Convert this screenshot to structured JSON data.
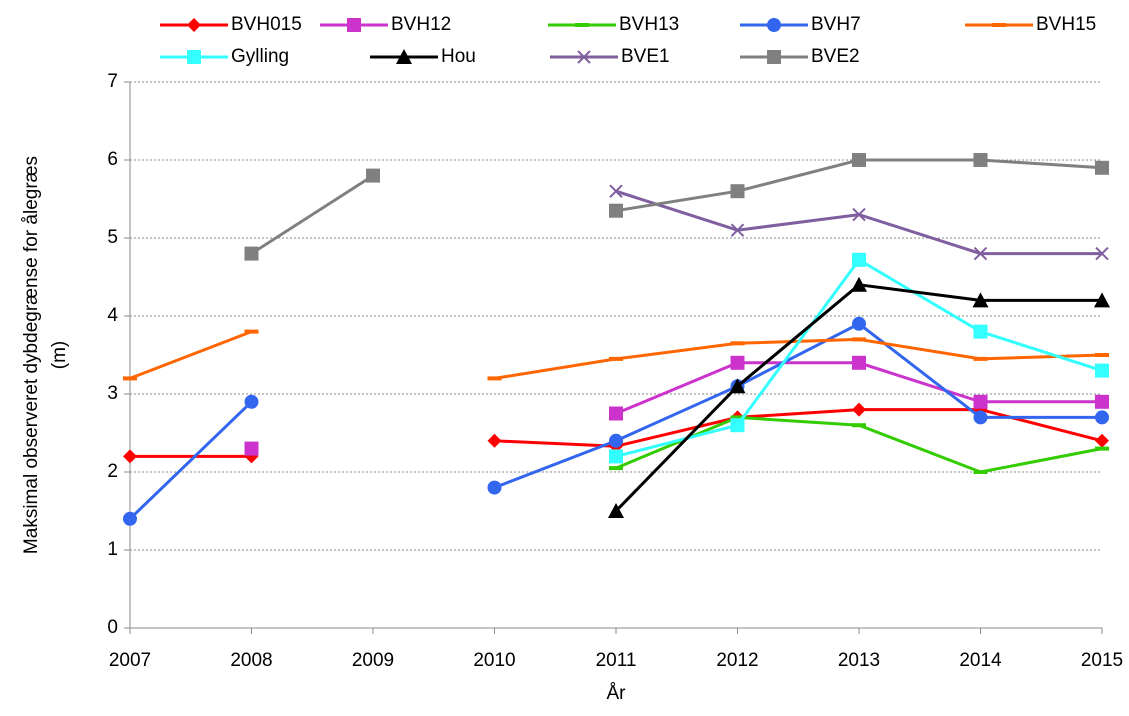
{
  "chart_data": {
    "type": "line",
    "ylabel": [
      "Maksimal observeret dybdegrænse for ålegræs",
      "(m)"
    ],
    "xlabel": "År",
    "x": [
      2007,
      2008,
      2009,
      2010,
      2011,
      2012,
      2013,
      2014,
      2015
    ],
    "xlim": [
      2007,
      2015
    ],
    "xticks": [
      2007,
      2008,
      2009,
      2010,
      2011,
      2012,
      2013,
      2014,
      2015
    ],
    "ylim": [
      0,
      7
    ],
    "yticks": [
      0,
      1,
      2,
      3,
      4,
      5,
      6,
      7
    ],
    "grid": true,
    "legend": "top",
    "series": [
      {
        "name": "BVH015",
        "color": "#ff0000",
        "marker": "diamond",
        "values": [
          2.2,
          2.2,
          null,
          2.4,
          2.33,
          2.7,
          2.8,
          2.8,
          2.4
        ]
      },
      {
        "name": "BVH12",
        "color": "#cc33cc",
        "marker": "square",
        "values": [
          null,
          2.3,
          null,
          null,
          2.75,
          3.4,
          3.4,
          2.9,
          2.9
        ]
      },
      {
        "name": "BVH13",
        "color": "#33cc00",
        "marker": "dash",
        "values": [
          null,
          null,
          null,
          null,
          2.05,
          2.7,
          2.6,
          2.0,
          2.3
        ]
      },
      {
        "name": "BVH7",
        "color": "#3366ee",
        "marker": "circle",
        "values": [
          1.4,
          2.9,
          null,
          1.8,
          2.4,
          3.1,
          3.9,
          2.7,
          2.7
        ]
      },
      {
        "name": "BVH15",
        "color": "#ff6600",
        "marker": "dash",
        "values": [
          3.2,
          3.8,
          null,
          3.2,
          3.45,
          3.65,
          3.7,
          3.45,
          3.5
        ]
      },
      {
        "name": "Gylling",
        "color": "#33ffff",
        "marker": "square",
        "values": [
          null,
          null,
          null,
          null,
          2.2,
          2.6,
          4.72,
          3.8,
          3.3
        ]
      },
      {
        "name": "Hou",
        "color": "#000000",
        "marker": "triangle",
        "values": [
          null,
          null,
          null,
          null,
          1.5,
          3.1,
          4.4,
          4.2,
          4.2
        ]
      },
      {
        "name": "BVE1",
        "color": "#7f5f9f",
        "marker": "x",
        "values": [
          null,
          null,
          null,
          null,
          5.6,
          5.1,
          5.3,
          4.8,
          4.8
        ]
      },
      {
        "name": "BVE2",
        "color": "#808080",
        "marker": "square",
        "values": [
          null,
          4.8,
          5.8,
          null,
          5.35,
          5.6,
          6.0,
          6.0,
          5.9
        ]
      }
    ]
  }
}
